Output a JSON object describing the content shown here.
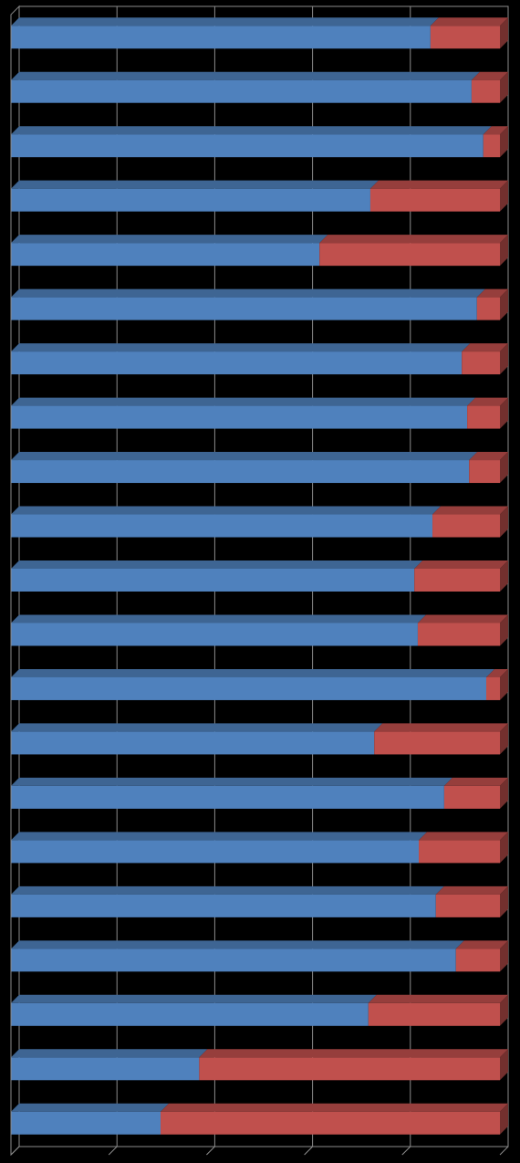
{
  "chart_data": {
    "type": "bar",
    "orientation": "horizontal",
    "stacked": "100%",
    "style": "3d",
    "title": "",
    "xlabel": "",
    "ylabel": "",
    "xlim": [
      0,
      100
    ],
    "grid": true,
    "legend": "none",
    "categories": [
      "",
      "",
      "",
      "",
      "",
      "",
      "",
      "",
      "",
      "",
      "",
      "",
      "",
      "",
      "",
      "",
      "",
      "",
      "",
      "",
      ""
    ],
    "series": [
      {
        "color": "#4f81bd",
        "values": [
          85.8,
          94.2,
          96.6,
          73.5,
          63.1,
          95.3,
          92.2,
          93.3,
          93.7,
          86.2,
          82.5,
          83.2,
          97.2,
          74.3,
          88.6,
          83.4,
          86.9,
          91.0,
          73.1,
          38.5,
          30.6
        ]
      },
      {
        "color": "#c0504d",
        "values": [
          14.2,
          5.8,
          3.4,
          26.5,
          36.9,
          4.7,
          7.8,
          6.7,
          6.3,
          13.8,
          17.5,
          16.8,
          2.8,
          25.7,
          11.4,
          16.6,
          13.1,
          9.0,
          26.9,
          61.5,
          69.4
        ]
      }
    ]
  }
}
